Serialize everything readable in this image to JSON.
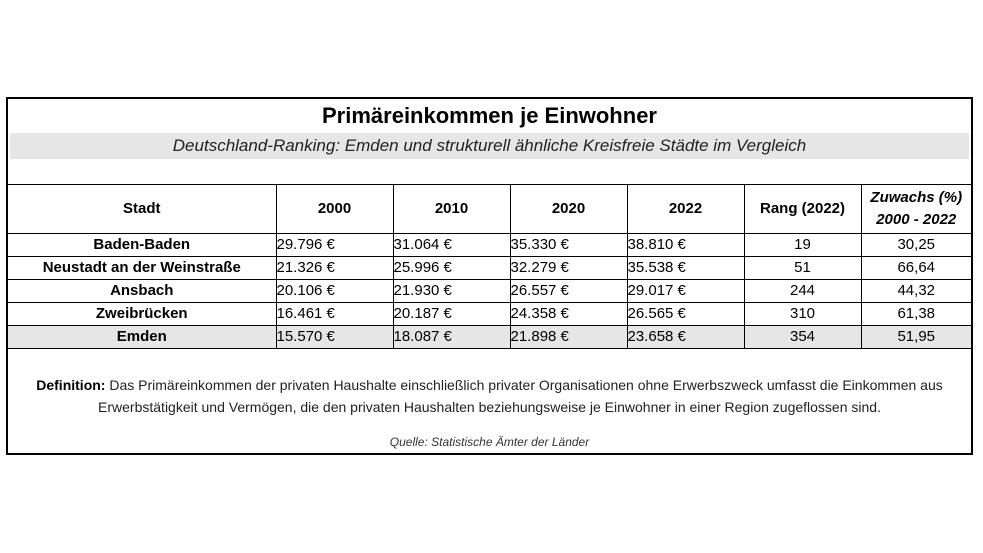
{
  "title": "Primäreinkommen je Einwohner",
  "subtitle": "Deutschland-Ranking: Emden und strukturell ähnliche Kreisfreie Städte im Vergleich",
  "table": {
    "headers": [
      "Stadt",
      "2000",
      "2010",
      "2020",
      "2022",
      "Rang (2022)"
    ],
    "growth_header_line1": "Zuwachs (%)",
    "growth_header_line2": "2000 - 2022",
    "rows": [
      {
        "city": "Baden-Baden",
        "v2000": "29.796 €",
        "v2010": "31.064 €",
        "v2020": "35.330 €",
        "v2022": "38.810 €",
        "rank": "19",
        "growth": "30,25"
      },
      {
        "city": "Neustadt an der Weinstraße",
        "v2000": "21.326 €",
        "v2010": "25.996 €",
        "v2020": "32.279 €",
        "v2022": "35.538 €",
        "rank": "51",
        "growth": "66,64"
      },
      {
        "city": "Ansbach",
        "v2000": "20.106 €",
        "v2010": "21.930 €",
        "v2020": "26.557 €",
        "v2022": "29.017 €",
        "rank": "244",
        "growth": "44,32"
      },
      {
        "city": "Zweibrücken",
        "v2000": "16.461 €",
        "v2010": "20.187 €",
        "v2020": "24.358 €",
        "v2022": "26.565 €",
        "rank": "310",
        "growth": "61,38"
      },
      {
        "city": "Emden",
        "v2000": "15.570 €",
        "v2010": "18.087 €",
        "v2020": "21.898 €",
        "v2022": "23.658 €",
        "rank": "354",
        "growth": "51,95"
      }
    ]
  },
  "definition_label": "Definition:",
  "definition_text": " Das Primäreinkommen der privaten Haushalte einschließlich privater Organisationen ohne Erwerbszweck umfasst die Einkommen aus Erwerbstätigkeit und Vermögen, die den privaten Haushalten beziehungsweise je Einwohner in einer Region zugeflossen sind.",
  "source": "Quelle: Statistische Ämter der Länder"
}
